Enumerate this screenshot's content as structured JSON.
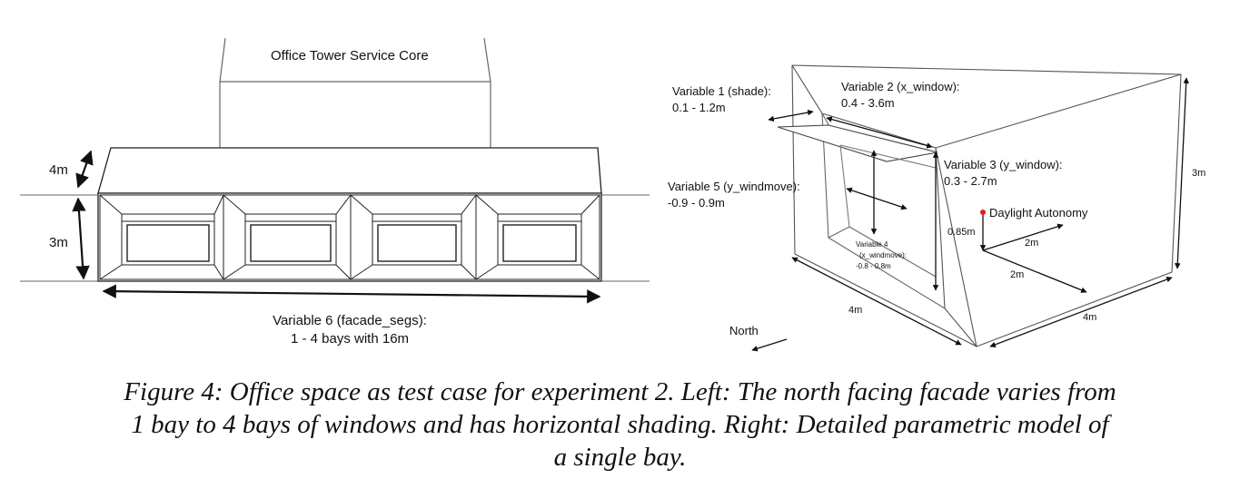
{
  "left_diagram": {
    "core_label": "Office Tower Service Core",
    "dim_height_top": "4m",
    "dim_height_bottom": "3m",
    "variable6_line1": "Variable 6 (facade_segs):",
    "variable6_line2": "1 - 4 bays with 16m"
  },
  "right_diagram": {
    "variable1_line1": "Variable 1 (shade):",
    "variable1_line2": "0.1 - 1.2m",
    "variable2_line1": "Variable 2 (x_window):",
    "variable2_line2": "0.4 - 3.6m",
    "variable3_line1": "Variable 3 (y_window):",
    "variable3_line2": "0.3 - 2.7m",
    "variable5_line1": "Variable 5 (y_windmove):",
    "variable5_line2": "-0.9 - 0.9m",
    "variable4_line1": "Variable 4",
    "variable4_line2": "(x_windmove):",
    "variable4_line3": "-0.8 - 0.8m",
    "daylight_label": "Daylight Autonomy",
    "sensor_height": "0.85m",
    "sensor_dist_1": "2m",
    "sensor_dist_2": "2m",
    "room_height": "3m",
    "room_width": "4m",
    "room_depth": "4m",
    "north_label": "North",
    "sensor_color": "#e02020"
  },
  "caption": {
    "line1": "Figure 4: Office space as test case for experiment 2. Left: The north facing facade varies from",
    "line2": "1 bay to 4 bays of windows and has horizontal shading. Right: Detailed parametric model of",
    "line3": "a single bay."
  }
}
